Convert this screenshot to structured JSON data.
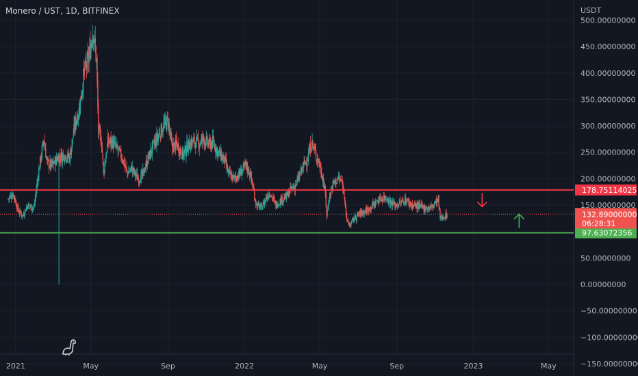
{
  "header": {
    "symbol": "Monero / UST, 1D, BITFINEX",
    "currency": "USDT"
  },
  "logo": {
    "icon": "tradingview-dino-icon"
  },
  "colors": {
    "background": "#131722",
    "up": "#26a69a",
    "down": "#ef5350",
    "resistance": "#f23645",
    "support": "#4caf50",
    "axis_text": "#b2b5be"
  },
  "chart_data": {
    "type": "candlestick",
    "title": "Monero / UST, 1D, BITFINEX",
    "xlabel": "",
    "ylabel": "USDT",
    "ylim": [
      -150,
      520
    ],
    "x_range": [
      "2020-12-07",
      "2023-06-10"
    ],
    "x_ticks": [
      {
        "date": "2021-01-01",
        "label": "2021"
      },
      {
        "date": "2021-05-01",
        "label": "May"
      },
      {
        "date": "2021-09-01",
        "label": "Sep"
      },
      {
        "date": "2022-01-01",
        "label": "2022"
      },
      {
        "date": "2022-05-01",
        "label": "May"
      },
      {
        "date": "2022-09-01",
        "label": "Sep"
      },
      {
        "date": "2023-01-01",
        "label": "2023"
      },
      {
        "date": "2023-05-01",
        "label": "May"
      }
    ],
    "y_ticks": [
      {
        "value": 500,
        "label": "500.00000000"
      },
      {
        "value": 450,
        "label": "450.00000000"
      },
      {
        "value": 400,
        "label": "400.00000000"
      },
      {
        "value": 350,
        "label": "350.00000000"
      },
      {
        "value": 300,
        "label": "300.00000000"
      },
      {
        "value": 250,
        "label": "250.00000000"
      },
      {
        "value": 200,
        "label": "200.00000000"
      },
      {
        "value": 150,
        "label": "150.00000000"
      },
      {
        "value": 50,
        "label": "50.00000000"
      },
      {
        "value": 0,
        "label": "0.00000000"
      },
      {
        "value": -50,
        "label": "−50.00000000"
      },
      {
        "value": -100,
        "label": "−100.00000000"
      },
      {
        "value": -150,
        "label": "−150.00000000"
      }
    ],
    "price_path": [
      [
        "2020-12-20",
        162
      ],
      [
        "2020-12-28",
        172
      ],
      [
        "2021-01-05",
        140
      ],
      [
        "2021-01-12",
        130
      ],
      [
        "2021-01-20",
        150
      ],
      [
        "2021-01-30",
        145
      ],
      [
        "2021-02-08",
        225
      ],
      [
        "2021-02-15",
        275
      ],
      [
        "2021-02-20",
        230
      ],
      [
        "2021-02-28",
        225
      ],
      [
        "2021-03-10",
        240
      ],
      [
        "2021-03-20",
        245
      ],
      [
        "2021-03-28",
        240
      ],
      [
        "2021-04-05",
        300
      ],
      [
        "2021-04-12",
        330
      ],
      [
        "2021-04-20",
        400
      ],
      [
        "2021-04-28",
        430
      ],
      [
        "2021-05-04",
        480
      ],
      [
        "2021-05-06",
        470
      ],
      [
        "2021-05-10",
        420
      ],
      [
        "2021-05-13",
        290
      ],
      [
        "2021-05-18",
        270
      ],
      [
        "2021-05-21",
        210
      ],
      [
        "2021-05-28",
        270
      ],
      [
        "2021-06-04",
        270
      ],
      [
        "2021-06-12",
        255
      ],
      [
        "2021-06-20",
        240
      ],
      [
        "2021-06-28",
        210
      ],
      [
        "2021-07-05",
        220
      ],
      [
        "2021-07-15",
        200
      ],
      [
        "2021-07-22",
        205
      ],
      [
        "2021-07-30",
        235
      ],
      [
        "2021-08-08",
        260
      ],
      [
        "2021-08-18",
        285
      ],
      [
        "2021-08-25",
        300
      ],
      [
        "2021-09-01",
        310
      ],
      [
        "2021-09-07",
        260
      ],
      [
        "2021-09-15",
        265
      ],
      [
        "2021-09-25",
        245
      ],
      [
        "2021-10-02",
        262
      ],
      [
        "2021-10-10",
        270
      ],
      [
        "2021-10-20",
        268
      ],
      [
        "2021-10-28",
        275
      ],
      [
        "2021-11-05",
        265
      ],
      [
        "2021-11-12",
        268
      ],
      [
        "2021-11-20",
        250
      ],
      [
        "2021-11-30",
        235
      ],
      [
        "2021-12-06",
        210
      ],
      [
        "2021-12-15",
        200
      ],
      [
        "2021-12-25",
        210
      ],
      [
        "2022-01-03",
        225
      ],
      [
        "2022-01-10",
        210
      ],
      [
        "2022-01-20",
        150
      ],
      [
        "2022-01-28",
        145
      ],
      [
        "2022-02-05",
        165
      ],
      [
        "2022-02-10",
        175
      ],
      [
        "2022-02-20",
        150
      ],
      [
        "2022-02-28",
        160
      ],
      [
        "2022-03-08",
        165
      ],
      [
        "2022-03-16",
        180
      ],
      [
        "2022-03-22",
        185
      ],
      [
        "2022-03-28",
        200
      ],
      [
        "2022-04-05",
        225
      ],
      [
        "2022-04-12",
        240
      ],
      [
        "2022-04-18",
        270
      ],
      [
        "2022-04-22",
        255
      ],
      [
        "2022-04-30",
        230
      ],
      [
        "2022-05-06",
        200
      ],
      [
        "2022-05-10",
        170
      ],
      [
        "2022-05-12",
        130
      ],
      [
        "2022-05-16",
        165
      ],
      [
        "2022-05-22",
        190
      ],
      [
        "2022-05-30",
        200
      ],
      [
        "2022-06-05",
        195
      ],
      [
        "2022-06-10",
        165
      ],
      [
        "2022-06-13",
        120
      ],
      [
        "2022-06-18",
        112
      ],
      [
        "2022-06-25",
        125
      ],
      [
        "2022-07-05",
        135
      ],
      [
        "2022-07-15",
        140
      ],
      [
        "2022-07-25",
        150
      ],
      [
        "2022-08-05",
        162
      ],
      [
        "2022-08-15",
        165
      ],
      [
        "2022-08-22",
        155
      ],
      [
        "2022-08-30",
        150
      ],
      [
        "2022-09-08",
        155
      ],
      [
        "2022-09-15",
        160
      ],
      [
        "2022-09-25",
        150
      ],
      [
        "2022-10-05",
        148
      ],
      [
        "2022-10-15",
        145
      ],
      [
        "2022-10-25",
        145
      ],
      [
        "2022-11-02",
        155
      ],
      [
        "2022-11-06",
        160
      ],
      [
        "2022-11-09",
        125
      ],
      [
        "2022-11-14",
        128
      ],
      [
        "2022-11-20",
        132
      ]
    ],
    "spike_wicks": [
      {
        "date": "2021-03-11",
        "high": 250,
        "low": 0
      }
    ],
    "horizontal_lines": [
      {
        "name": "resistance",
        "value": 178.75114025,
        "label": "178.75114025",
        "color": "#f23645"
      },
      {
        "name": "support",
        "value": 97.63072356,
        "label": "97.63072356",
        "color": "#4caf50"
      }
    ],
    "last_price": {
      "value": 132.89,
      "label": "132.89000000",
      "countdown": "06:28:31"
    },
    "arrows": [
      {
        "direction": "down",
        "date": "2023-01-15",
        "value": 160,
        "color": "#f23645"
      },
      {
        "direction": "up",
        "date": "2023-03-15",
        "value": 120,
        "color": "#4caf50"
      }
    ],
    "grid": true,
    "legend": "none"
  }
}
